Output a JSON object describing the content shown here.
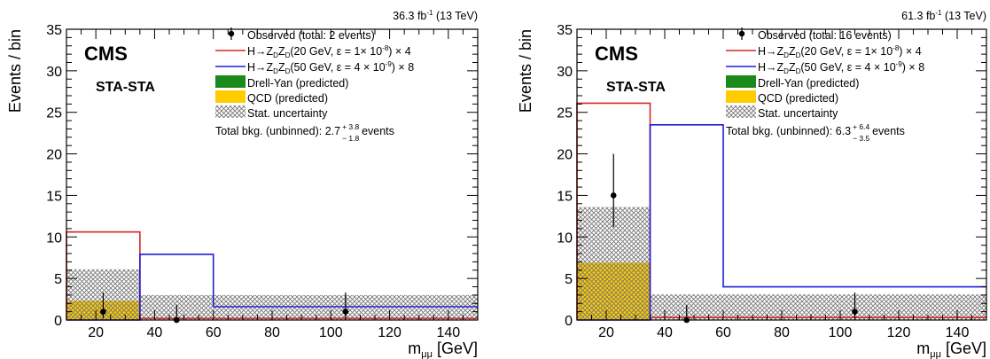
{
  "chart_data": [
    {
      "type": "histogram",
      "luminosity": "36.3 fb",
      "lumi_exp": "-1",
      "energy": " (13 TeV)",
      "cms_label": "CMS",
      "category": "STA-STA",
      "xlabel": "m",
      "xlabel_sub": "μμ",
      "xlabel_unit": " [GeV]",
      "ylabel": "Events / bin",
      "xlim": [
        10,
        150
      ],
      "ylim": [
        0,
        35
      ],
      "xticks": [
        20,
        40,
        60,
        80,
        100,
        120,
        140
      ],
      "yticks": [
        0,
        5,
        10,
        15,
        20,
        25,
        30,
        35
      ],
      "bin_edges": [
        10,
        35,
        60,
        150
      ],
      "drell_yan": [
        0.0,
        0.0,
        0.0
      ],
      "qcd": [
        2.3,
        0.0,
        0.0
      ],
      "uncertainty_band": [
        [
          0,
          6.1
        ],
        [
          0,
          3.0
        ],
        [
          0,
          3.0
        ]
      ],
      "signal_20": [
        10.6,
        0.2,
        0.2
      ],
      "signal_50": [
        0.0,
        7.9,
        1.6
      ],
      "observed": [
        {
          "x": 22.5,
          "y": 1,
          "err_low": 0.83,
          "err_high": 2.3
        },
        {
          "x": 47.5,
          "y": 0,
          "err_low": 0,
          "err_high": 1.84
        },
        {
          "x": 105,
          "y": 1,
          "err_low": 0.83,
          "err_high": 2.3
        }
      ],
      "colors": {
        "observed": "#000000",
        "signal_20": "#d62728",
        "signal_50": "#1f1fd6",
        "drell_yan": "#1a8a1a",
        "qcd": "#ffcc00",
        "hatch": "#777777"
      },
      "legend": {
        "placement": "top-right",
        "observed": "Observed (total: 2 events)",
        "sig20_prefix": "H→Z",
        "sig20_mid": "Z",
        "sig20_text": "(20 GeV, ε = 1× 10",
        "sig20_exp": "-8",
        "sig20_scale": ") × 4",
        "sig50_prefix": "H→Z",
        "sig50_mid": "Z",
        "sig50_text": "(50 GeV, ε = 4 × 10",
        "sig50_exp": "-9",
        "sig50_scale": ") × 8",
        "sub_d": "D",
        "drell_yan": "Drell-Yan (predicted)",
        "qcd": "QCD (predicted)",
        "stat": "Stat. uncertainty",
        "total_prefix": "Total bkg. (unbinned): 2.7",
        "total_up": "+ 3.8",
        "total_down": "− 1.8",
        "total_suffix": "events"
      }
    },
    {
      "type": "histogram",
      "luminosity": "61.3 fb",
      "lumi_exp": "-1",
      "energy": " (13 TeV)",
      "cms_label": "CMS",
      "category": "STA-STA",
      "xlabel": "m",
      "xlabel_sub": "μμ",
      "xlabel_unit": " [GeV]",
      "ylabel": "Events / bin",
      "xlim": [
        10,
        150
      ],
      "ylim": [
        0,
        35
      ],
      "xticks": [
        20,
        40,
        60,
        80,
        100,
        120,
        140
      ],
      "yticks": [
        0,
        5,
        10,
        15,
        20,
        25,
        30,
        35
      ],
      "bin_edges": [
        10,
        35,
        60,
        150
      ],
      "drell_yan": [
        0.0,
        0.0,
        0.0
      ],
      "qcd": [
        6.9,
        0.0,
        0.0
      ],
      "uncertainty_band": [
        [
          0,
          13.6
        ],
        [
          0,
          3.1
        ],
        [
          0,
          3.1
        ]
      ],
      "signal_20": [
        26.1,
        0.3,
        0.3
      ],
      "signal_50": [
        0.0,
        23.5,
        4.0
      ],
      "observed": [
        {
          "x": 22.5,
          "y": 15,
          "err_low": 3.8,
          "err_high": 5.0
        },
        {
          "x": 47.5,
          "y": 0,
          "err_low": 0,
          "err_high": 1.84
        },
        {
          "x": 105,
          "y": 1,
          "err_low": 0.83,
          "err_high": 2.3
        }
      ],
      "colors": {
        "observed": "#000000",
        "signal_20": "#d62728",
        "signal_50": "#1f1fd6",
        "drell_yan": "#1a8a1a",
        "qcd": "#ffcc00",
        "hatch": "#777777"
      },
      "legend": {
        "placement": "top-right",
        "observed": "Observed (total: 16 events)",
        "sig20_prefix": "H→Z",
        "sig20_mid": "Z",
        "sig20_text": "(20 GeV, ε = 1× 10",
        "sig20_exp": "-8",
        "sig20_scale": ") × 4",
        "sig50_prefix": "H→Z",
        "sig50_mid": "Z",
        "sig50_text": "(50 GeV, ε = 4 × 10",
        "sig50_exp": "-9",
        "sig50_scale": ") × 8",
        "sub_d": "D",
        "drell_yan": "Drell-Yan (predicted)",
        "qcd": "QCD (predicted)",
        "stat": "Stat. uncertainty",
        "total_prefix": "Total bkg. (unbinned): 6.3",
        "total_up": "+ 6.4",
        "total_down": "− 3.5",
        "total_suffix": "events"
      }
    }
  ]
}
